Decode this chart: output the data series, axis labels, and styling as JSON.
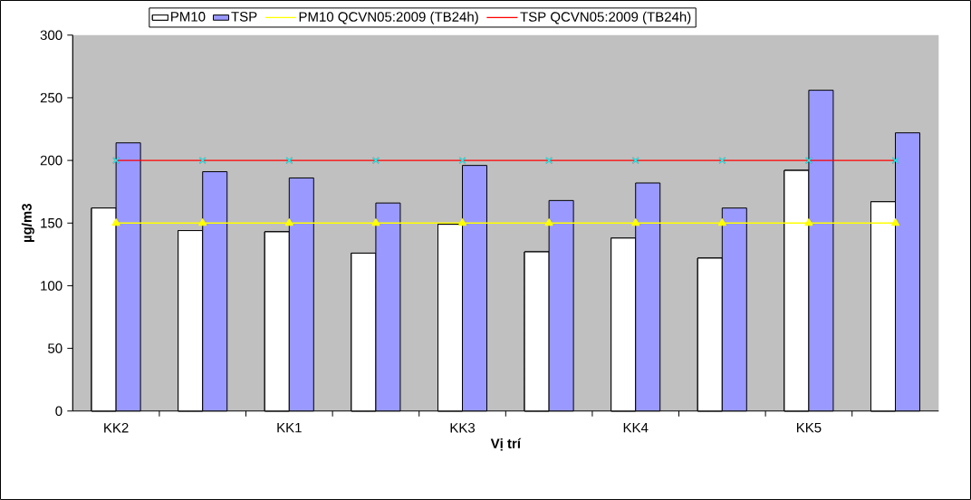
{
  "chart_data": {
    "type": "bar",
    "xlabel": "Vị trí",
    "ylabel": "µg/m3",
    "categories": [
      "KK2",
      null,
      "KK1",
      null,
      "KK3",
      null,
      "KK4",
      null,
      "KK5",
      null
    ],
    "series": [
      {
        "name": "PM10",
        "color": "#000000",
        "values": [
          162,
          144,
          143,
          126,
          149,
          127,
          138,
          122,
          192,
          167
        ]
      },
      {
        "name": "TSP",
        "color": "#9999ff",
        "values": [
          214,
          191,
          186,
          166,
          196,
          168,
          182,
          162,
          256,
          222
        ]
      },
      {
        "name": "PM10 QCVN05:2009 (TB24h)",
        "type": "line",
        "marker": "triangle",
        "color": "#ffff00",
        "values": [
          150,
          150,
          150,
          150,
          150,
          150,
          150,
          150,
          150,
          150
        ]
      },
      {
        "name": "TSP QCVN05:2009 (TB24h)",
        "type": "line",
        "marker": "cross",
        "color": "#ff0000",
        "colors": [
          "#00ffff",
          "#00ffff",
          "#00ffff",
          "#00ffff",
          "#00ffff",
          "#00ffff",
          "#00ffff",
          "#00ffff",
          "#00ffff",
          "#00ffff"
        ],
        "values": [
          200,
          200,
          200,
          200,
          200,
          200,
          200,
          200,
          200,
          200
        ]
      }
    ],
    "ylim": [
      0,
      300
    ],
    "yticks": [
      0,
      50,
      100,
      150,
      200,
      250,
      300
    ],
    "grid": false,
    "legend": "top"
  }
}
